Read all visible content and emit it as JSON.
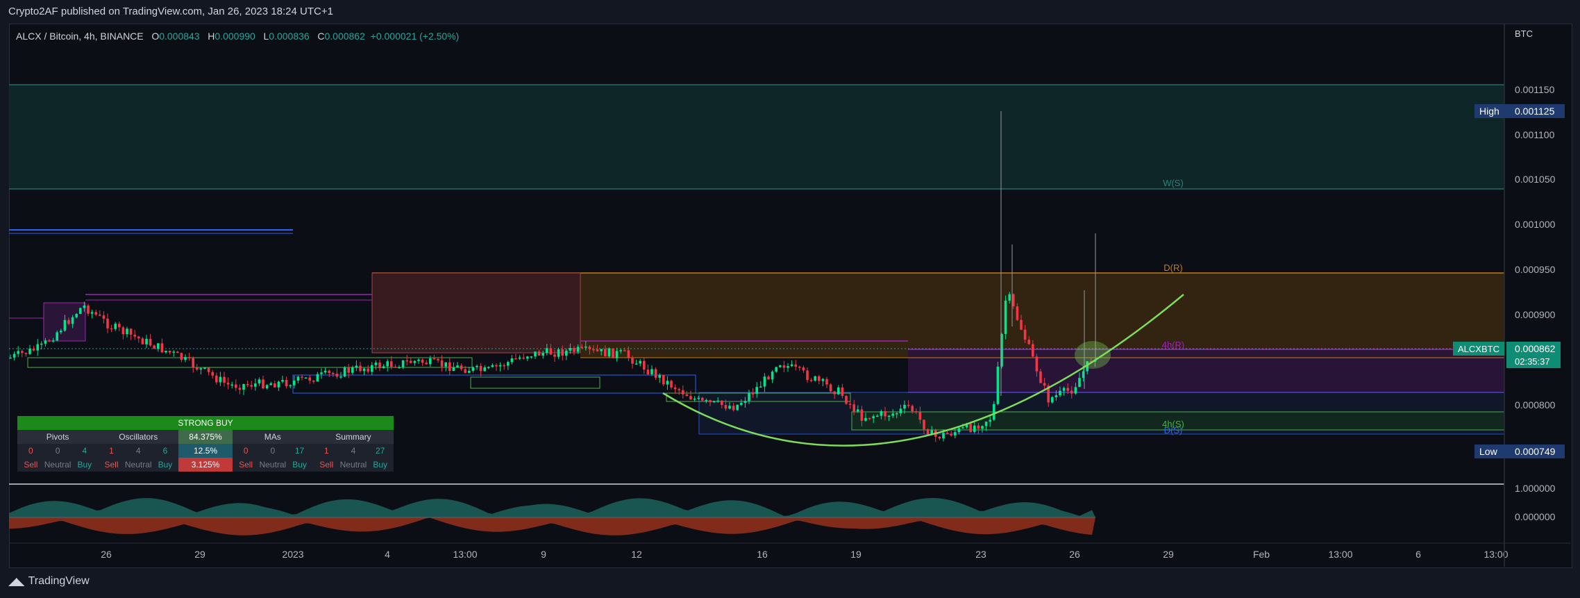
{
  "header": {
    "published": "Crypto2AF published on TradingView.com, Jan 26, 2023 18:24 UTC+1"
  },
  "symbol": {
    "name": "ALCX / Bitcoin, 4h, BINANCE",
    "o_label": "O",
    "o": "0.000843",
    "h_label": "H",
    "h": "0.000990",
    "l_label": "L",
    "l": "0.000836",
    "c_label": "C",
    "c": "0.000862",
    "change": "+0.000021 (+2.50%)",
    "ticker": "ALCXBTC",
    "countdown": "02:35:37"
  },
  "price_axis": {
    "currency": "BTC",
    "ticks": [
      "0.001150",
      "0.001100",
      "0.001050",
      "0.001000",
      "0.000950",
      "0.000900",
      "0.000800"
    ],
    "high_label": "High",
    "high": "0.001125",
    "low_label": "Low",
    "low": "0.000749",
    "last": "0.000862"
  },
  "osc_axis": {
    "ticks": [
      "1.000000",
      "0.000000"
    ]
  },
  "time_axis": {
    "ticks": [
      "26",
      "29",
      "2023",
      "4",
      "13:00",
      "9",
      "12",
      "16",
      "19",
      "23",
      "26",
      "29",
      "Feb",
      "13:00",
      "6",
      "13:00"
    ]
  },
  "levels": {
    "w_s": "W(S)",
    "d_r": "D(R)",
    "h4_r": "4h(R)",
    "h4_s": "4h(S)",
    "d_s": "D(S)"
  },
  "panel": {
    "title": "STRONG BUY",
    "headers": [
      "Pivots",
      "Oscillators",
      "84.375%",
      "MAs",
      "Summary"
    ],
    "values": [
      "0",
      "0",
      "4",
      "1",
      "4",
      "6",
      "12.5%",
      "0",
      "0",
      "17",
      "1",
      "4",
      "27"
    ],
    "labels": [
      "Sell",
      "Neutral",
      "Buy",
      "Sell",
      "Neutral",
      "Buy",
      "3.125%",
      "Sell",
      "Neutral",
      "Buy",
      "Sell",
      "Neutral",
      "Buy"
    ]
  },
  "footer": {
    "brand": "TradingView"
  },
  "colors": {
    "up": "#26a69a",
    "up_bright": "#00e58c",
    "down": "#f23645",
    "curve": "#7ddc5a"
  }
}
